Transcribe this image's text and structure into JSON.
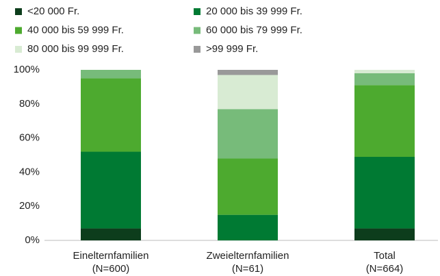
{
  "chart_data": {
    "type": "stacked_bar",
    "categories": [
      [
        "Einelternfamilien",
        "(N=600)"
      ],
      [
        "Zweielternfamilien",
        "(N=61)"
      ],
      [
        "Total",
        "(N=664)"
      ]
    ],
    "series": [
      {
        "name": "<20 000 Fr.",
        "color": "#0d3d1c",
        "values": [
          7,
          0,
          7
        ]
      },
      {
        "name": "20 000 bis 39 999 Fr.",
        "color": "#007a33",
        "values": [
          45,
          15,
          42
        ]
      },
      {
        "name": "40 000 bis 59 999 Fr.",
        "color": "#4daa2f",
        "values": [
          43,
          33,
          42
        ]
      },
      {
        "name": "60 000 bis 79 999 Fr.",
        "color": "#77bb7a",
        "values": [
          5,
          29,
          7
        ]
      },
      {
        "name": "80 000 bis 99 999 Fr.",
        "color": "#d8ebd3",
        "values": [
          0,
          20,
          2
        ]
      },
      {
        "name": ">99 999 Fr.",
        "color": "#999999",
        "values": [
          0,
          3,
          0
        ]
      }
    ],
    "ylim": [
      0,
      100
    ],
    "yticks": [
      {
        "value": 0,
        "label": "0%"
      },
      {
        "value": 20,
        "label": "20%"
      },
      {
        "value": 40,
        "label": "40%"
      },
      {
        "value": 60,
        "label": "60%"
      },
      {
        "value": 80,
        "label": "80%"
      },
      {
        "value": 100,
        "label": "100%"
      }
    ],
    "grid": false,
    "legend": "top"
  }
}
